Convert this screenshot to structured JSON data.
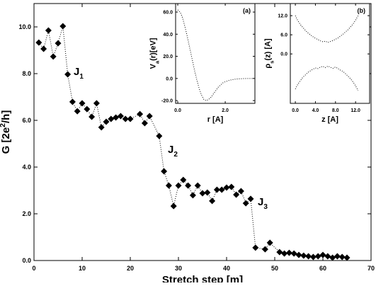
{
  "chart_data": [
    {
      "type": "line",
      "xlabel": "Stretch step [m]",
      "ylabel": [
        "G [2e",
        "2",
        "/h]"
      ],
      "x": [
        1,
        2,
        3,
        4,
        5,
        6,
        7,
        8,
        9,
        10,
        11,
        12,
        13,
        14,
        15,
        16,
        17,
        18,
        19,
        20,
        22,
        23,
        24,
        26,
        27,
        28,
        29,
        30,
        31,
        32,
        33,
        34,
        35,
        36,
        37,
        38,
        39,
        40,
        41,
        42,
        43,
        44,
        45,
        46,
        48,
        49,
        51,
        52,
        53,
        54,
        55,
        56,
        57,
        58,
        59,
        60,
        61,
        62,
        63,
        64,
        65
      ],
      "values": [
        9.33,
        9.06,
        9.85,
        8.73,
        9.3,
        10.03,
        7.97,
        6.79,
        6.39,
        6.73,
        6.48,
        6.15,
        6.73,
        5.7,
        5.94,
        6.06,
        6.12,
        6.18,
        6.06,
        6.06,
        6.27,
        5.88,
        6.18,
        5.33,
        3.82,
        3.21,
        2.33,
        3.21,
        3.45,
        3.21,
        2.79,
        3.21,
        2.88,
        2.91,
        2.55,
        3.03,
        3.03,
        3.12,
        3.15,
        2.82,
        2.97,
        2.45,
        2.64,
        0.55,
        0.48,
        0.76,
        0.36,
        0.3,
        0.33,
        0.3,
        0.24,
        0.21,
        0.18,
        0.15,
        0.18,
        0.24,
        0.18,
        0.12,
        0.18,
        0.15,
        0.12
      ],
      "color": "#000000",
      "marker": "diamond",
      "line_style": "dotted",
      "xlim": [
        0,
        70
      ],
      "xticks": [
        0,
        10,
        20,
        30,
        40,
        50,
        60,
        70
      ],
      "ylim": [
        0,
        11
      ],
      "yticks": [
        {
          "value": 0,
          "label": "0.0"
        },
        {
          "value": 2,
          "label": "2.0"
        },
        {
          "value": 4,
          "label": "4.0"
        },
        {
          "value": 6,
          "label": "6.0"
        },
        {
          "value": 8,
          "label": "8.0"
        },
        {
          "value": 10,
          "label": "10.0"
        }
      ],
      "annotations": [
        {
          "text": "J",
          "sub": "1"
        },
        {
          "text": "J",
          "sub": "2"
        },
        {
          "text": "J",
          "sub": "3"
        }
      ]
    },
    {
      "type": "line",
      "panel_label": "(a)",
      "xlabel": "r [A]",
      "ylabel": [
        "V",
        "a",
        "(r)[eV]"
      ],
      "x": [
        0,
        0.1,
        0.2,
        0.3,
        0.4,
        0.5,
        0.6,
        0.7,
        0.8,
        0.9,
        1.0,
        1.1,
        1.2,
        1.3,
        1.4,
        1.5,
        1.6,
        1.7,
        1.8,
        1.9,
        2.0,
        2.2,
        2.4,
        2.6,
        2.8,
        3.0,
        3.2
      ],
      "series": [
        {
          "color": "#000000",
          "values": [
            62,
            60,
            55,
            47,
            38,
            28,
            18,
            8,
            -1,
            -9,
            -15,
            -19,
            -20,
            -19,
            -17,
            -14,
            -11,
            -8,
            -6,
            -4,
            -3,
            -1.5,
            -0.7,
            -0.3,
            -0.1,
            0,
            0
          ]
        }
      ],
      "line_style": "dotted",
      "xlim": [
        -0.09,
        3.25
      ],
      "xticks": [
        {
          "value": 0,
          "label": "0.0"
        },
        {
          "value": 2,
          "label": "2.0"
        }
      ],
      "ylim": [
        -22.5,
        67.7
      ],
      "yticks": [
        {
          "value": -20,
          "label": "-20.0"
        },
        {
          "value": 0,
          "label": "0.0"
        },
        {
          "value": 20,
          "label": "20.0"
        },
        {
          "value": 40,
          "label": "40.0"
        },
        {
          "value": 60,
          "label": "60.0"
        }
      ]
    },
    {
      "type": "line",
      "panel_label": "(b)",
      "xlabel": "z [A]",
      "ylabel": [
        "ρ",
        "s",
        "(z) [A]"
      ],
      "x": [
        0,
        0.5,
        1,
        1.5,
        2,
        2.5,
        3,
        3.5,
        4,
        4.5,
        5,
        5.5,
        6,
        6.5,
        7,
        7.5,
        8,
        8.5,
        9,
        9.5,
        10,
        10.5,
        11,
        11.5,
        12,
        12.5
      ],
      "series": [
        {
          "color": "#000000",
          "values": [
            12,
            10.4,
            9.2,
            8.3,
            7.4,
            6.6,
            6,
            5.4,
            4.9,
            4.5,
            4.1,
            3.8,
            4,
            3.6,
            3.9,
            4.2,
            4.6,
            5,
            5.6,
            6.2,
            6.9,
            7.6,
            8.5,
            9.4,
            10.6,
            12
          ]
        },
        {
          "color": "#000000",
          "values": [
            -11,
            -9.5,
            -8.4,
            -7.3,
            -6.6,
            -5.8,
            -5.3,
            -4.8,
            -4.4,
            -4.6,
            -4.1,
            -3.9,
            -4.3,
            -3.8,
            -4.2,
            -4.5,
            -4.1,
            -4.6,
            -5.1,
            -5.5,
            -6.2,
            -7,
            -7.8,
            -8.8,
            -10,
            -11.5
          ]
        }
      ],
      "line_style": "dotted",
      "xlim": [
        -1,
        14.8
      ],
      "xticks": [
        {
          "value": 0,
          "label": "0.0"
        },
        {
          "value": 4,
          "label": "4.0"
        },
        {
          "value": 8,
          "label": "8.0"
        },
        {
          "value": 12,
          "label": "12.0"
        }
      ],
      "ylim": [
        -15.5,
        15.8
      ],
      "yticks": [
        {
          "value": 0,
          "label": "0.0"
        },
        {
          "value": 6,
          "label": "6.0"
        },
        {
          "value": 12,
          "label": "12.0"
        }
      ]
    }
  ]
}
